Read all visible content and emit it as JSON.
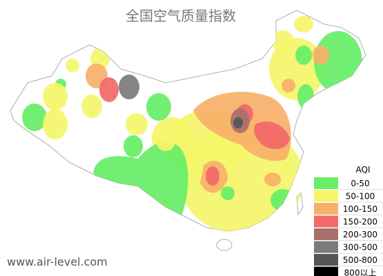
{
  "title": "全国空气质量指数",
  "legend": {
    "title": "AQI",
    "items": [
      {
        "label": "0-50",
        "color": "#66ee66"
      },
      {
        "label": "50-100",
        "color": "#f5f56a"
      },
      {
        "label": "100-150",
        "color": "#f7b06a"
      },
      {
        "label": "150-200",
        "color": "#f36868"
      },
      {
        "label": "200-300",
        "color": "#a8706c"
      },
      {
        "label": "300-500",
        "color": "#7a7a7a"
      },
      {
        "label": "500-800",
        "color": "#555555"
      },
      {
        "label": "800以上",
        "color": "#000000"
      }
    ]
  },
  "watermark": "www.air-level.com"
}
